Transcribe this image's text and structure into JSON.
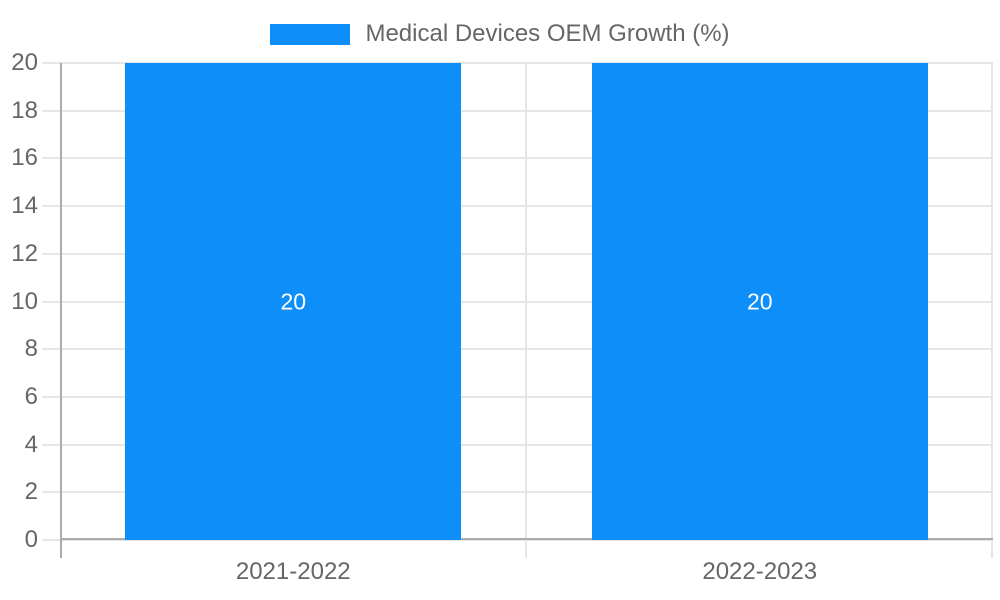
{
  "chart_data": {
    "type": "bar",
    "title": "",
    "legend": {
      "position": "top",
      "label": "Medical Devices OEM Growth (%)",
      "swatch_color": "#0d8ef9"
    },
    "categories": [
      "2021-2022",
      "2022-2023"
    ],
    "series": [
      {
        "name": "Medical Devices OEM Growth (%)",
        "values": [
          20,
          20
        ],
        "color": "#0d8ef9"
      }
    ],
    "data_labels": [
      "20",
      "20"
    ],
    "ylim": [
      0,
      20
    ],
    "ytick_step": 2,
    "yticks": [
      "0",
      "2",
      "4",
      "6",
      "8",
      "10",
      "12",
      "14",
      "16",
      "18",
      "20"
    ],
    "xlabel": "",
    "ylabel": "",
    "grid": "on"
  },
  "colors": {
    "bar": "#0d8ef9",
    "grid_line": "#e6e6e6",
    "axis_line": "#ababab",
    "tick_text": "#666666",
    "data_label_text": "#ffffff",
    "background": "#ffffff"
  }
}
